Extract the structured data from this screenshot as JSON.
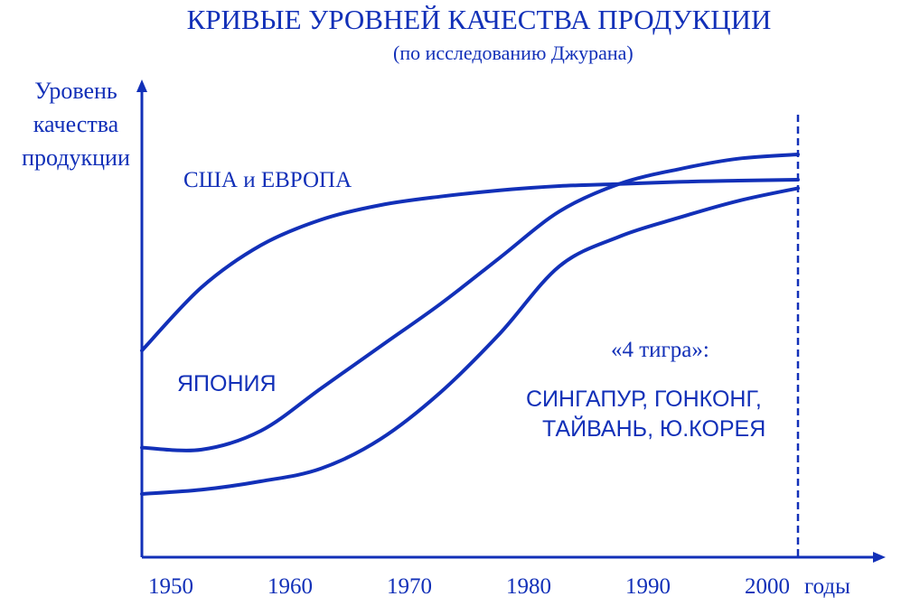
{
  "chart_data": {
    "type": "line",
    "title": "КРИВЫЕ УРОВНЕЙ КАЧЕСТВА ПРОДУКЦИИ",
    "subtitle": "(по исследованию Джурана)",
    "ylabel_lines": [
      "Уровень",
      "качества",
      "продукции"
    ],
    "xlabel": "годы",
    "x_ticks": [
      "1950",
      "1960",
      "1970",
      "1980",
      "1990",
      "2000"
    ],
    "xlim": [
      1950,
      2007
    ],
    "ylim": [
      0,
      100
    ],
    "y_ticks_shown": false,
    "grid": false,
    "marker_line_year": 2005,
    "series": [
      {
        "label_lines": [
          "США и ЕВРОПА"
        ],
        "x": [
          1950,
          1955,
          1960,
          1965,
          1970,
          1975,
          1980,
          1985,
          1990,
          1995,
          2000,
          2005
        ],
        "y": [
          49,
          64,
          74,
          80,
          83.5,
          85.5,
          87,
          88,
          88.5,
          89,
          89.3,
          89.5
        ]
      },
      {
        "label_lines": [
          "ЯПОНИЯ"
        ],
        "x": [
          1950,
          1955,
          1960,
          1965,
          1970,
          1975,
          1980,
          1985,
          1990,
          1995,
          2000,
          2005
        ],
        "y": [
          26,
          25.5,
          30,
          40,
          50,
          60,
          71,
          82,
          88.5,
          92,
          94.5,
          95.5
        ]
      },
      {
        "label_lines": [
          "«4 тигра»:",
          "СИНГАПУР, ГОНКОНГ,",
          "ТАЙВАНЬ, Ю.КОРЕЯ"
        ],
        "x": [
          1950,
          1955,
          1960,
          1965,
          1970,
          1975,
          1980,
          1985,
          1990,
          1995,
          2000,
          2005
        ],
        "y": [
          15,
          16,
          18,
          21,
          28,
          39,
          53,
          69,
          76,
          80.5,
          84.5,
          87.5
        ]
      }
    ]
  },
  "colors": {
    "ink": "#1230b8",
    "background": "#ffffff"
  }
}
